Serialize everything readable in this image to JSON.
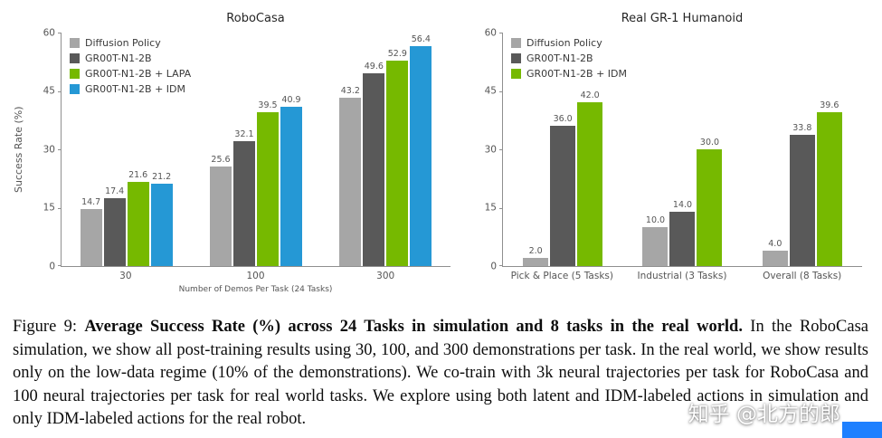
{
  "caption": {
    "prefix": "Figure 9: ",
    "bold": "Average Success Rate (%) across 24 Tasks in simulation and 8 tasks in the real world.",
    "rest": " In the RoboCasa simulation, we show all post-training results using 30, 100, and 300 demonstrations per task. In the real world, we show results only on the low-data regime (10% of the demonstrations). We co-train with 3k neural trajectories per task for RoboCasa and 100 neural trajectories per task for real world tasks. We explore using both latent and IDM-labeled actions in simulation and only IDM-labeled actions for the real robot."
  },
  "watermark": {
    "text": "知乎 @北方的郎",
    "accent_color": "#1e80ff"
  },
  "chart_data": [
    {
      "type": "bar",
      "title": "RoboCasa",
      "xlabel": "Number of Demos Per Task (24 Tasks)",
      "ylabel": "Success Rate (%)",
      "ylim": [
        0,
        60
      ],
      "yticks": [
        0,
        15,
        30,
        45,
        60
      ],
      "grid": false,
      "legend_position": "top-left",
      "categories": [
        "30",
        "100",
        "300"
      ],
      "series": [
        {
          "name": "Diffusion Policy",
          "color": "#a6a6a6",
          "values": [
            14.7,
            25.6,
            43.2
          ]
        },
        {
          "name": "GR00T-N1-2B",
          "color": "#595959",
          "values": [
            17.4,
            32.1,
            49.6
          ]
        },
        {
          "name": "GR00T-N1-2B + LAPA",
          "color": "#76b900",
          "values": [
            21.6,
            39.5,
            52.9
          ]
        },
        {
          "name": "GR00T-N1-2B + IDM",
          "color": "#2598d5",
          "values": [
            21.2,
            40.9,
            56.4
          ]
        }
      ]
    },
    {
      "type": "bar",
      "title": "Real GR-1 Humanoid",
      "xlabel": "",
      "ylabel": "",
      "ylim": [
        0,
        60
      ],
      "yticks": [
        0,
        15,
        30,
        45,
        60
      ],
      "grid": false,
      "legend_position": "top-left",
      "categories": [
        "Pick & Place (5 Tasks)",
        "Industrial (3 Tasks)",
        "Overall (8 Tasks)"
      ],
      "series": [
        {
          "name": "Diffusion Policy",
          "color": "#a6a6a6",
          "values": [
            2.0,
            10.0,
            4.0
          ]
        },
        {
          "name": "GR00T-N1-2B",
          "color": "#595959",
          "values": [
            36.0,
            14.0,
            33.8
          ]
        },
        {
          "name": "GR00T-N1-2B + IDM",
          "color": "#76b900",
          "values": [
            42.0,
            30.0,
            39.6
          ]
        }
      ]
    }
  ]
}
